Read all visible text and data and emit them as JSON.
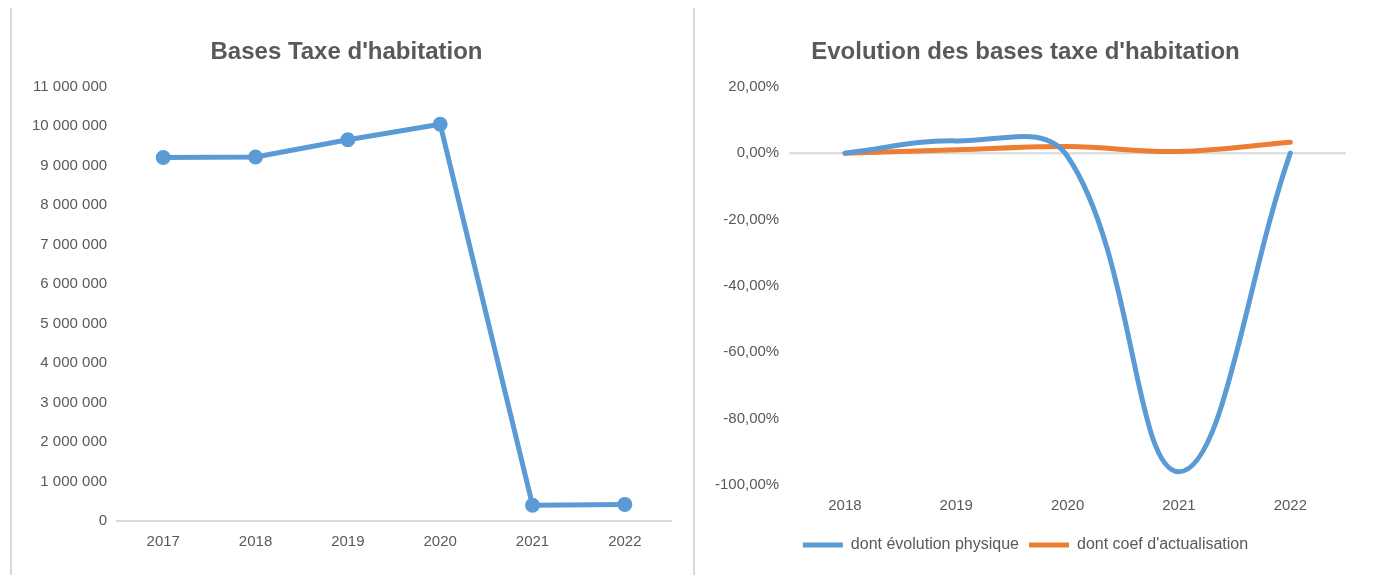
{
  "chart_data": [
    {
      "type": "line",
      "title": "Bases Taxe d'habitation",
      "categories": [
        "2017",
        "2018",
        "2019",
        "2020",
        "2021",
        "2022"
      ],
      "series": [
        {
          "color": "#5b9bd5",
          "values": [
            9210000,
            9220000,
            9660000,
            10050000,
            400000,
            420000
          ]
        }
      ],
      "ylim": [
        0,
        11000000
      ],
      "yticks": [
        {
          "value": 0,
          "label": "0"
        },
        {
          "value": 1000000,
          "label": "1 000 000"
        },
        {
          "value": 2000000,
          "label": "2 000 000"
        },
        {
          "value": 3000000,
          "label": "3 000 000"
        },
        {
          "value": 4000000,
          "label": "4 000 000"
        },
        {
          "value": 5000000,
          "label": "5 000 000"
        },
        {
          "value": 6000000,
          "label": "6 000 000"
        },
        {
          "value": 7000000,
          "label": "7 000 000"
        },
        {
          "value": 8000000,
          "label": "8 000 000"
        },
        {
          "value": 9000000,
          "label": "9 000 000"
        },
        {
          "value": 10000000,
          "label": "10 000 000"
        },
        {
          "value": 11000000,
          "label": "11 000 000"
        }
      ],
      "marker": "circle",
      "grid": false,
      "legend": false
    },
    {
      "type": "line",
      "title": "Evolution des bases taxe d'habitation",
      "categories": [
        "2018",
        "2019",
        "2020",
        "2021",
        "2022"
      ],
      "series": [
        {
          "name": "dont évolution physique",
          "color": "#5b9bd5",
          "values": [
            0,
            3.7,
            -1,
            -96,
            0
          ]
        },
        {
          "name": "dont coef d'actualisation",
          "color": "#ed7d31",
          "values": [
            0,
            1,
            2,
            0.5,
            3.3
          ]
        }
      ],
      "ylim": [
        -100,
        20
      ],
      "yticks": [
        {
          "value": -100,
          "label": "-100,00%"
        },
        {
          "value": -80,
          "label": "-80,00%"
        },
        {
          "value": -60,
          "label": "-60,00%"
        },
        {
          "value": -40,
          "label": "-40,00%"
        },
        {
          "value": -20,
          "label": "-20,00%"
        },
        {
          "value": 0,
          "label": "0,00%"
        },
        {
          "value": 20,
          "label": "20,00%"
        }
      ],
      "ref_lines": [
        {
          "axis": "y",
          "value": 0,
          "color": "#d9d9d9"
        }
      ],
      "marker": "none",
      "grid": false,
      "legend": "bottom"
    }
  ]
}
